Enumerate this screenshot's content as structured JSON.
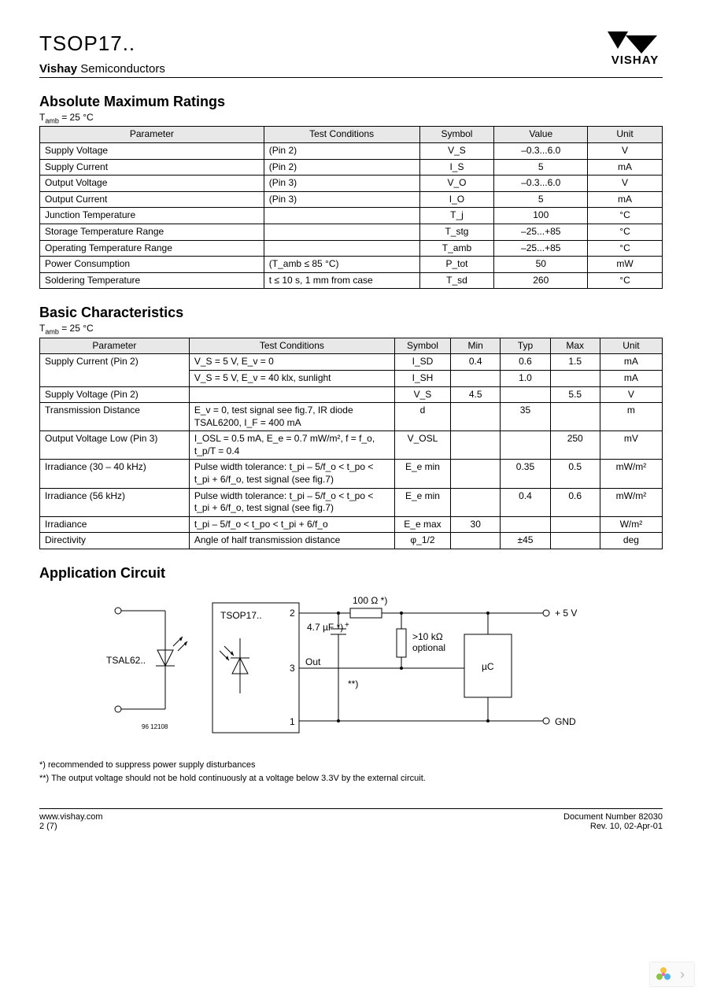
{
  "header": {
    "part": "TSOP17..",
    "brand_bold": "Vishay",
    "brand_rest": "Semiconductors",
    "logo_text": "VISHAY"
  },
  "section1": {
    "title": "Absolute Maximum Ratings",
    "cond": "T_amb = 25 °C",
    "headers": [
      "Parameter",
      "Test Conditions",
      "Symbol",
      "Value",
      "Unit"
    ],
    "rows": [
      [
        "Supply Voltage",
        "(Pin 2)",
        "V_S",
        "–0.3...6.0",
        "V"
      ],
      [
        "Supply Current",
        "(Pin 2)",
        "I_S",
        "5",
        "mA"
      ],
      [
        "Output Voltage",
        "(Pin 3)",
        "V_O",
        "–0.3...6.0",
        "V"
      ],
      [
        "Output Current",
        "(Pin 3)",
        "I_O",
        "5",
        "mA"
      ],
      [
        "Junction Temperature",
        "",
        "T_j",
        "100",
        "°C"
      ],
      [
        "Storage Temperature Range",
        "",
        "T_stg",
        "–25...+85",
        "°C"
      ],
      [
        "Operating Temperature Range",
        "",
        "T_amb",
        "–25...+85",
        "°C"
      ],
      [
        "Power Consumption",
        "(T_amb ≤ 85 °C)",
        "P_tot",
        "50",
        "mW"
      ],
      [
        "Soldering Temperature",
        "t ≤ 10 s, 1 mm from case",
        "T_sd",
        "260",
        "°C"
      ]
    ]
  },
  "section2": {
    "title": "Basic Characteristics",
    "cond": "T_amb = 25 °C",
    "headers": [
      "Parameter",
      "Test Conditions",
      "Symbol",
      "Min",
      "Typ",
      "Max",
      "Unit"
    ],
    "rows": [
      [
        "Supply Current (Pin 2)",
        "V_S = 5 V, E_v = 0",
        "I_SD",
        "0.4",
        "0.6",
        "1.5",
        "mA"
      ],
      [
        "",
        "V_S = 5 V, E_v = 40 klx, sunlight",
        "I_SH",
        "",
        "1.0",
        "",
        "mA"
      ],
      [
        "Supply Voltage (Pin 2)",
        "",
        "V_S",
        "4.5",
        "",
        "5.5",
        "V"
      ],
      [
        "Transmission Distance",
        "E_v = 0, test signal see fig.7, IR diode TSAL6200, I_F = 400 mA",
        "d",
        "",
        "35",
        "",
        "m"
      ],
      [
        "Output Voltage Low (Pin 3)",
        "I_OSL = 0.5 mA, E_e = 0.7 mW/m², f = f_o, t_p/T = 0.4",
        "V_OSL",
        "",
        "",
        "250",
        "mV"
      ],
      [
        "Irradiance (30 – 40 kHz)",
        "Pulse width tolerance: t_pi – 5/f_o < t_po < t_pi + 6/f_o, test signal (see fig.7)",
        "E_e min",
        "",
        "0.35",
        "0.5",
        "mW/m²"
      ],
      [
        "Irradiance (56 kHz)",
        "Pulse width tolerance: t_pi – 5/f_o < t_po < t_pi + 6/f_o, test signal (see fig.7)",
        "E_e min",
        "",
        "0.4",
        "0.6",
        "mW/m²"
      ],
      [
        "Irradiance",
        "t_pi – 5/f_o < t_po < t_pi + 6/f_o",
        "E_e max",
        "30",
        "",
        "",
        "W/m²"
      ],
      [
        "Directivity",
        "Angle of half transmission distance",
        "φ_1/2",
        "",
        "±45",
        "",
        "deg"
      ]
    ]
  },
  "section3": {
    "title": "Application Circuit",
    "labels": {
      "tsal": "TSAL62..",
      "tsop": "TSOP17..",
      "pin1": "1",
      "pin2": "2",
      "pin3": "3",
      "r1": "100 Ω *)",
      "c1": "4.7 µF *)",
      "r2": ">10 kΩ optional",
      "out": "Out",
      "mc": "µC",
      "v5": "+ 5 V",
      "gnd": "GND",
      "note_star": "**)",
      "idnum": "96 12108"
    },
    "notes": [
      "*) recommended to suppress power supply disturbances",
      "**) The output voltage should not be hold continuously at a voltage below 3.3V by the external circuit."
    ]
  },
  "footer": {
    "left1": "www.vishay.com",
    "left2": "2 (7)",
    "right1": "Document Number 82030",
    "right2": "Rev. 10, 02-Apr-01"
  }
}
